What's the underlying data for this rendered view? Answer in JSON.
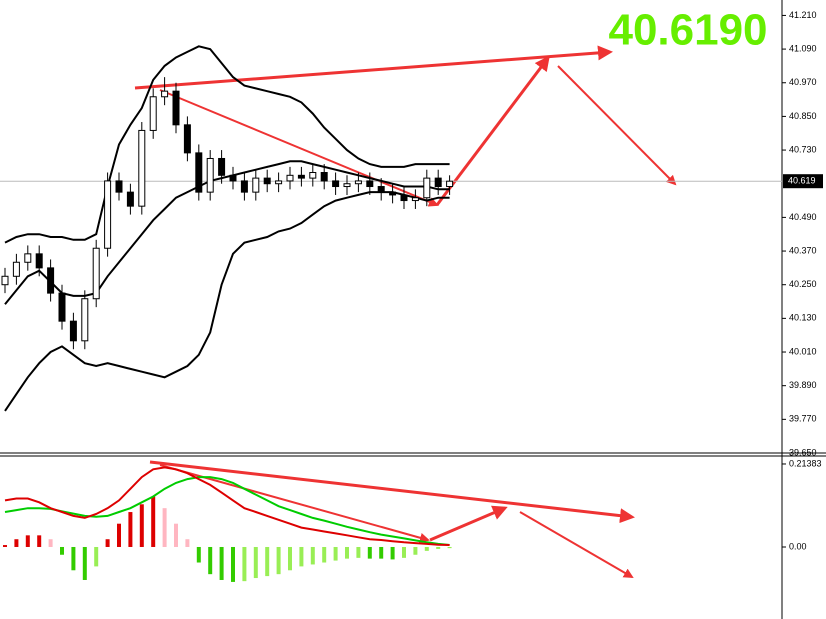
{
  "chart_data": {
    "type": "candlestick",
    "annotation": "40.6190",
    "current_price": 40.619,
    "ylim": [
      39.65,
      41.265
    ],
    "yticks": [
      {
        "value": 41.21,
        "label": "41.210"
      },
      {
        "value": 41.09,
        "label": "41.090"
      },
      {
        "value": 40.97,
        "label": "40.970"
      },
      {
        "value": 40.85,
        "label": "40.850"
      },
      {
        "value": 40.73,
        "label": "40.730"
      },
      {
        "value": 40.49,
        "label": "40.490"
      },
      {
        "value": 40.37,
        "label": "40.370"
      },
      {
        "value": 40.25,
        "label": "40.250"
      },
      {
        "value": 40.13,
        "label": "40.130"
      },
      {
        "value": 40.01,
        "label": "40.010"
      },
      {
        "value": 39.89,
        "label": "39.890"
      },
      {
        "value": 39.77,
        "label": "39.770"
      },
      {
        "value": 39.65,
        "label": "39.650"
      }
    ],
    "open": [
      40.25,
      40.28,
      40.33,
      40.36,
      40.31,
      40.22,
      40.12,
      40.05,
      40.2,
      40.38,
      40.62,
      40.58,
      40.53,
      40.8,
      40.92,
      40.94,
      40.82,
      40.72,
      40.58,
      40.7,
      40.64,
      40.62,
      40.58,
      40.63,
      40.61,
      40.62,
      40.64,
      40.63,
      40.65,
      40.62,
      40.6,
      40.61,
      40.62,
      40.6,
      40.58,
      40.57,
      40.55,
      40.56,
      40.63,
      40.6
    ],
    "high": [
      40.31,
      40.36,
      40.39,
      40.39,
      40.34,
      40.25,
      40.15,
      40.23,
      40.41,
      40.65,
      40.65,
      40.61,
      40.83,
      40.95,
      40.99,
      40.97,
      40.85,
      40.75,
      40.73,
      40.73,
      40.67,
      40.65,
      40.66,
      40.66,
      40.65,
      40.67,
      40.67,
      40.68,
      40.68,
      40.65,
      40.64,
      40.65,
      40.65,
      40.63,
      40.61,
      40.6,
      40.59,
      40.66,
      40.66,
      40.64
    ],
    "low": [
      40.22,
      40.25,
      40.3,
      40.28,
      40.19,
      40.09,
      40.02,
      40.02,
      40.17,
      40.35,
      40.55,
      40.5,
      40.5,
      40.77,
      40.89,
      40.79,
      40.69,
      40.55,
      40.55,
      40.61,
      40.59,
      40.55,
      40.55,
      40.58,
      40.58,
      40.59,
      40.6,
      40.6,
      40.59,
      40.57,
      40.57,
      40.58,
      40.57,
      40.55,
      40.54,
      40.52,
      40.52,
      40.53,
      40.57,
      40.57
    ],
    "close": [
      40.28,
      40.33,
      40.36,
      40.31,
      40.22,
      40.12,
      40.05,
      40.2,
      40.38,
      40.62,
      40.58,
      40.53,
      40.8,
      40.92,
      40.94,
      40.82,
      40.72,
      40.58,
      40.7,
      40.64,
      40.62,
      40.58,
      40.63,
      40.61,
      40.62,
      40.64,
      40.63,
      40.65,
      40.62,
      40.6,
      40.61,
      40.62,
      40.6,
      40.58,
      40.57,
      40.55,
      40.56,
      40.63,
      40.6,
      40.619
    ],
    "bands": [
      {
        "color": "#000000",
        "values": [
          40.4,
          40.42,
          40.43,
          40.43,
          40.42,
          40.42,
          40.41,
          40.41,
          40.43,
          40.6,
          40.75,
          40.82,
          40.88,
          40.98,
          41.03,
          41.06,
          41.08,
          41.1,
          41.09,
          41.04,
          40.99,
          40.96,
          40.95,
          40.94,
          40.93,
          40.92,
          40.9,
          40.86,
          40.81,
          40.77,
          40.73,
          40.7,
          40.68,
          40.67,
          40.67,
          40.67,
          40.68,
          40.68,
          40.68,
          40.68
        ]
      },
      {
        "color": "#000000",
        "values": [
          40.18,
          40.23,
          40.28,
          40.3,
          40.26,
          40.22,
          40.21,
          40.21,
          40.22,
          40.28,
          40.33,
          40.38,
          40.43,
          40.48,
          40.52,
          40.56,
          40.58,
          40.6,
          40.62,
          40.63,
          40.64,
          40.65,
          40.66,
          40.67,
          40.68,
          40.69,
          40.69,
          40.68,
          40.67,
          40.66,
          40.65,
          40.64,
          40.63,
          40.62,
          40.61,
          40.6,
          40.6,
          40.6,
          40.59,
          40.59
        ]
      },
      {
        "color": "#000000",
        "values": [
          39.8,
          39.86,
          39.92,
          39.97,
          40.01,
          40.03,
          40.0,
          39.97,
          39.96,
          39.97,
          39.96,
          39.95,
          39.94,
          39.93,
          39.92,
          39.94,
          39.96,
          40.0,
          40.08,
          40.25,
          40.36,
          40.4,
          40.41,
          40.42,
          40.44,
          40.45,
          40.47,
          40.5,
          40.53,
          40.55,
          40.56,
          40.57,
          40.58,
          40.58,
          40.58,
          40.57,
          40.56,
          40.55,
          40.56,
          40.56
        ]
      }
    ],
    "oscillator": {
      "ylim": [
        -0.1855,
        0.2318
      ],
      "yticks": [
        0.21383,
        {
          "value": 0,
          "label": "0.00"
        }
      ],
      "histogram": [
        0.005,
        0.02,
        0.03,
        0.03,
        0.02,
        -0.02,
        -0.06,
        -0.085,
        -0.05,
        0.02,
        0.06,
        0.09,
        0.11,
        0.13,
        0.1,
        0.06,
        0.02,
        -0.04,
        -0.07,
        -0.085,
        -0.09,
        -0.088,
        -0.08,
        -0.075,
        -0.07,
        -0.06,
        -0.05,
        -0.045,
        -0.04,
        -0.035,
        -0.03,
        -0.028,
        -0.03,
        -0.03,
        -0.032,
        -0.028,
        -0.02,
        -0.01,
        -0.005,
        -0.003
      ],
      "colors": {
        "up_pos": "#dd0000",
        "down_pos": "#ffb6c1",
        "down_neg": "#33cc00",
        "up_neg": "#99ee55"
      },
      "lines": [
        {
          "color": "#00cc00",
          "values": [
            0.09,
            0.095,
            0.1,
            0.1,
            0.098,
            0.092,
            0.086,
            0.08,
            0.078,
            0.08,
            0.09,
            0.1,
            0.115,
            0.13,
            0.15,
            0.165,
            0.175,
            0.18,
            0.18,
            0.175,
            0.165,
            0.15,
            0.135,
            0.12,
            0.105,
            0.095,
            0.085,
            0.075,
            0.068,
            0.06,
            0.052,
            0.045,
            0.038,
            0.032,
            0.027,
            0.022,
            0.017,
            0.012,
            0.008,
            0.005
          ]
        },
        {
          "color": "#dd0000",
          "values": [
            0.12,
            0.125,
            0.125,
            0.115,
            0.1,
            0.09,
            0.08,
            0.075,
            0.085,
            0.1,
            0.12,
            0.15,
            0.18,
            0.2,
            0.205,
            0.2,
            0.19,
            0.175,
            0.16,
            0.14,
            0.12,
            0.1,
            0.09,
            0.08,
            0.07,
            0.06,
            0.05,
            0.045,
            0.04,
            0.035,
            0.03,
            0.025,
            0.02,
            0.018,
            0.015,
            0.012,
            0.01,
            0.008,
            0.006,
            0.005
          ]
        }
      ]
    }
  }
}
